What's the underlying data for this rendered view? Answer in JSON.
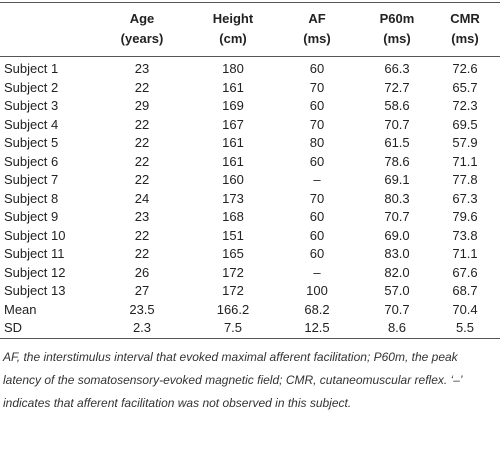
{
  "table": {
    "columns": [
      {
        "name": "Age",
        "unit": "(years)"
      },
      {
        "name": "Height",
        "unit": "(cm)"
      },
      {
        "name": "AF",
        "unit": "(ms)"
      },
      {
        "name": "P60m",
        "unit": "(ms)"
      },
      {
        "name": "CMR",
        "unit": "(ms)"
      }
    ],
    "rows": [
      [
        "Subject 1",
        "23",
        "180",
        "60",
        "66.3",
        "72.6"
      ],
      [
        "Subject 2",
        "22",
        "161",
        "70",
        "72.7",
        "65.7"
      ],
      [
        "Subject 3",
        "29",
        "169",
        "60",
        "58.6",
        "72.3"
      ],
      [
        "Subject 4",
        "22",
        "167",
        "70",
        "70.7",
        "69.5"
      ],
      [
        "Subject 5",
        "22",
        "161",
        "80",
        "61.5",
        "57.9"
      ],
      [
        "Subject 6",
        "22",
        "161",
        "60",
        "78.6",
        "71.1"
      ],
      [
        "Subject 7",
        "22",
        "160",
        "–",
        "69.1",
        "77.8"
      ],
      [
        "Subject 8",
        "24",
        "173",
        "70",
        "80.3",
        "67.3"
      ],
      [
        "Subject 9",
        "23",
        "168",
        "60",
        "70.7",
        "79.6"
      ],
      [
        "Subject 10",
        "22",
        "151",
        "60",
        "69.0",
        "73.8"
      ],
      [
        "Subject 11",
        "22",
        "165",
        "60",
        "83.0",
        "71.1"
      ],
      [
        "Subject 12",
        "26",
        "172",
        "–",
        "82.0",
        "67.6"
      ],
      [
        "Subject 13",
        "27",
        "172",
        "100",
        "57.0",
        "68.7"
      ],
      [
        "Mean",
        "23.5",
        "166.2",
        "68.2",
        "70.7",
        "70.4"
      ],
      [
        "SD",
        "2.3",
        "7.5",
        "12.5",
        "8.6",
        "5.5"
      ]
    ],
    "footnote": "AF, the interstimulus interval that evoked maximal afferent facilitation; P60m, the peak latency of the somatosensory-evoked magnetic field; CMR, cutaneomuscular reflex. ‘–’ indicates that afferent facilitation was not observed in this subject."
  }
}
